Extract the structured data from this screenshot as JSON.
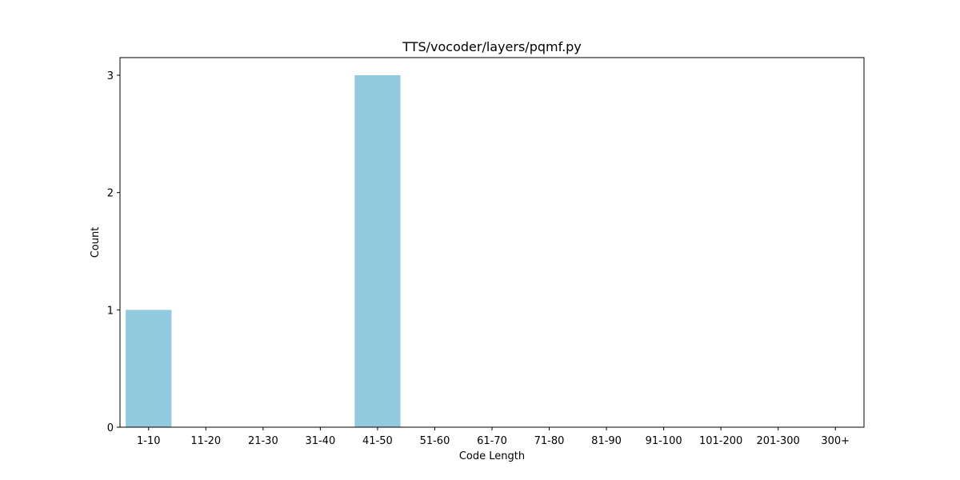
{
  "chart_data": {
    "type": "bar",
    "title": "TTS/vocoder/layers/pqmf.py",
    "xlabel": "Code Length",
    "ylabel": "Count",
    "categories": [
      "1-10",
      "11-20",
      "21-30",
      "31-40",
      "41-50",
      "51-60",
      "61-70",
      "71-80",
      "81-90",
      "91-100",
      "101-200",
      "201-300",
      "300+"
    ],
    "values": [
      1,
      0,
      0,
      0,
      3,
      0,
      0,
      0,
      0,
      0,
      0,
      0,
      0
    ],
    "yticks": [
      0,
      1,
      2,
      3
    ],
    "ylim": [
      0,
      3.15
    ],
    "grid": false,
    "bar_color": "#92c9df"
  }
}
